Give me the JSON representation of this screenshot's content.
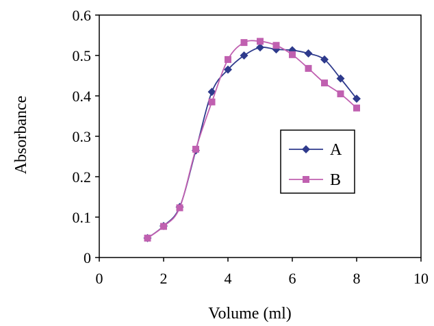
{
  "chart_data": {
    "type": "line",
    "title": "",
    "xlabel": "Volume (ml)",
    "ylabel": "Absorbance",
    "xlim": [
      0,
      10
    ],
    "ylim": [
      0,
      0.6
    ],
    "x_ticks": [
      "0",
      "2",
      "4",
      "6",
      "8",
      "10"
    ],
    "y_ticks": [
      "0",
      "0.1",
      "0.2",
      "0.3",
      "0.4",
      "0.5",
      "0.6"
    ],
    "grid": false,
    "legend_position": "center-right",
    "series": [
      {
        "name": "A",
        "color": "#2e3a8c",
        "marker": "diamond",
        "x": [
          1.5,
          2.0,
          2.5,
          3.0,
          3.5,
          4.0,
          4.5,
          5.0,
          5.5,
          6.0,
          6.5,
          7.0,
          7.5,
          8.0
        ],
        "y": [
          0.048,
          0.078,
          0.125,
          0.265,
          0.41,
          0.465,
          0.5,
          0.52,
          0.515,
          0.513,
          0.505,
          0.49,
          0.443,
          0.393
        ]
      },
      {
        "name": "B",
        "color": "#c060b0",
        "marker": "square",
        "x": [
          1.5,
          2.0,
          2.5,
          3.0,
          3.5,
          4.0,
          4.5,
          5.0,
          5.5,
          6.0,
          6.5,
          7.0,
          7.5,
          8.0
        ],
        "y": [
          0.048,
          0.077,
          0.123,
          0.268,
          0.385,
          0.49,
          0.532,
          0.535,
          0.525,
          0.502,
          0.468,
          0.432,
          0.405,
          0.37
        ]
      }
    ]
  }
}
